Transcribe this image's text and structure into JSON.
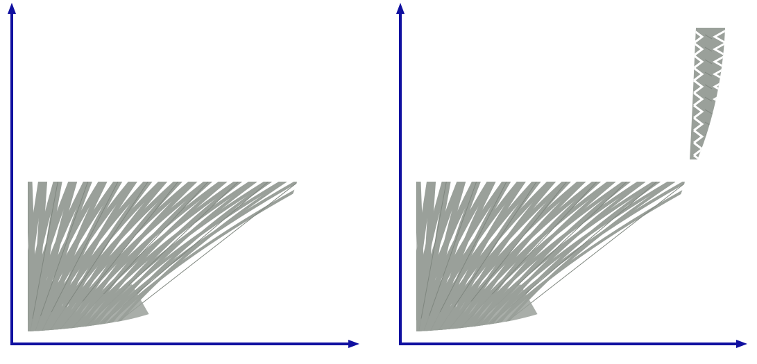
{
  "colors": {
    "axis": "#1010a0",
    "mesh": "#9aa09a",
    "mesh_edge": "#7f867f",
    "background": "#ffffff"
  },
  "panels": [
    {
      "name": "left-panel",
      "has_detached_strip": false
    },
    {
      "name": "right-panel",
      "has_detached_strip": true
    }
  ]
}
